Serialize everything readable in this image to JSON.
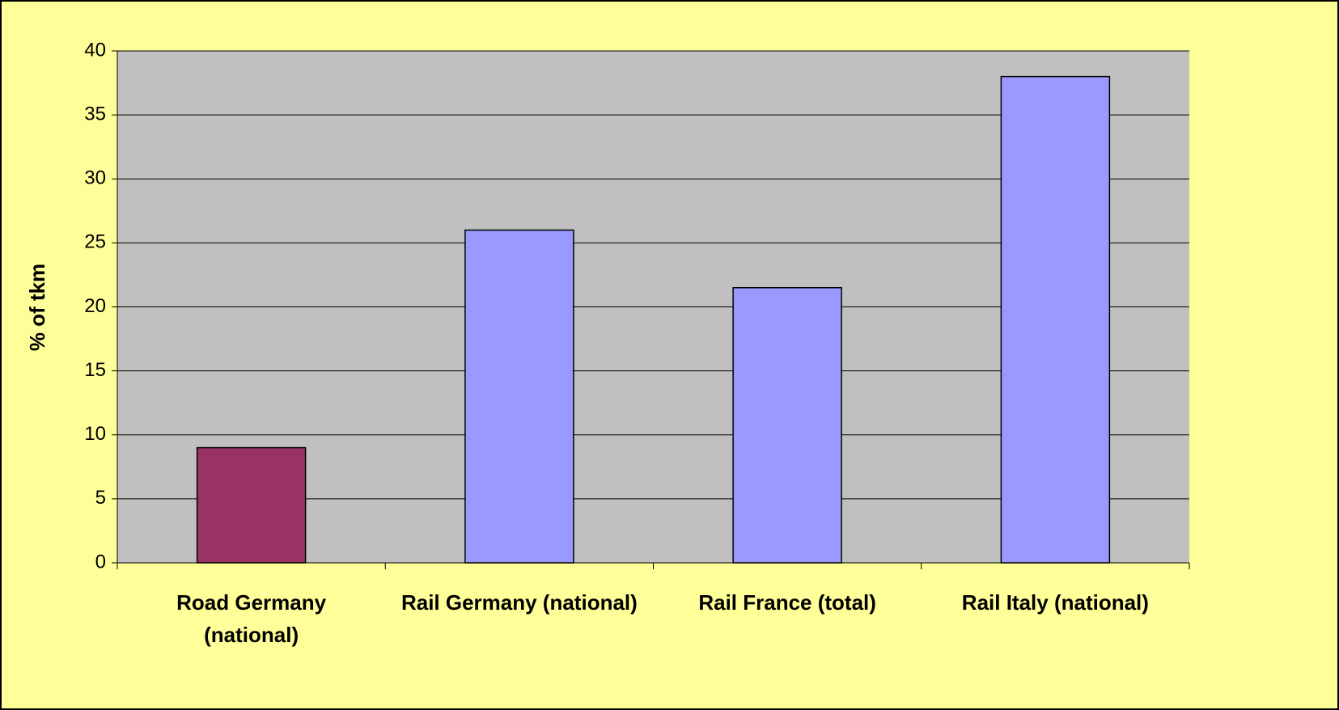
{
  "chart_data": {
    "type": "bar",
    "ylabel": "% of tkm",
    "categories": [
      "Road Germany (national)",
      "Rail Germany (national)",
      "Rail France (total)",
      "Rail Italy (national)"
    ],
    "values": [
      9,
      26,
      21.5,
      38
    ],
    "colors": [
      "#993366",
      "#9999ff",
      "#9999ff",
      "#9999ff"
    ],
    "ylim": [
      0,
      40
    ],
    "yticks": [
      0,
      5,
      10,
      15,
      20,
      25,
      30,
      35,
      40
    ],
    "grid": true,
    "background": "#ffff99",
    "plot_background": "#c0c0c0"
  }
}
